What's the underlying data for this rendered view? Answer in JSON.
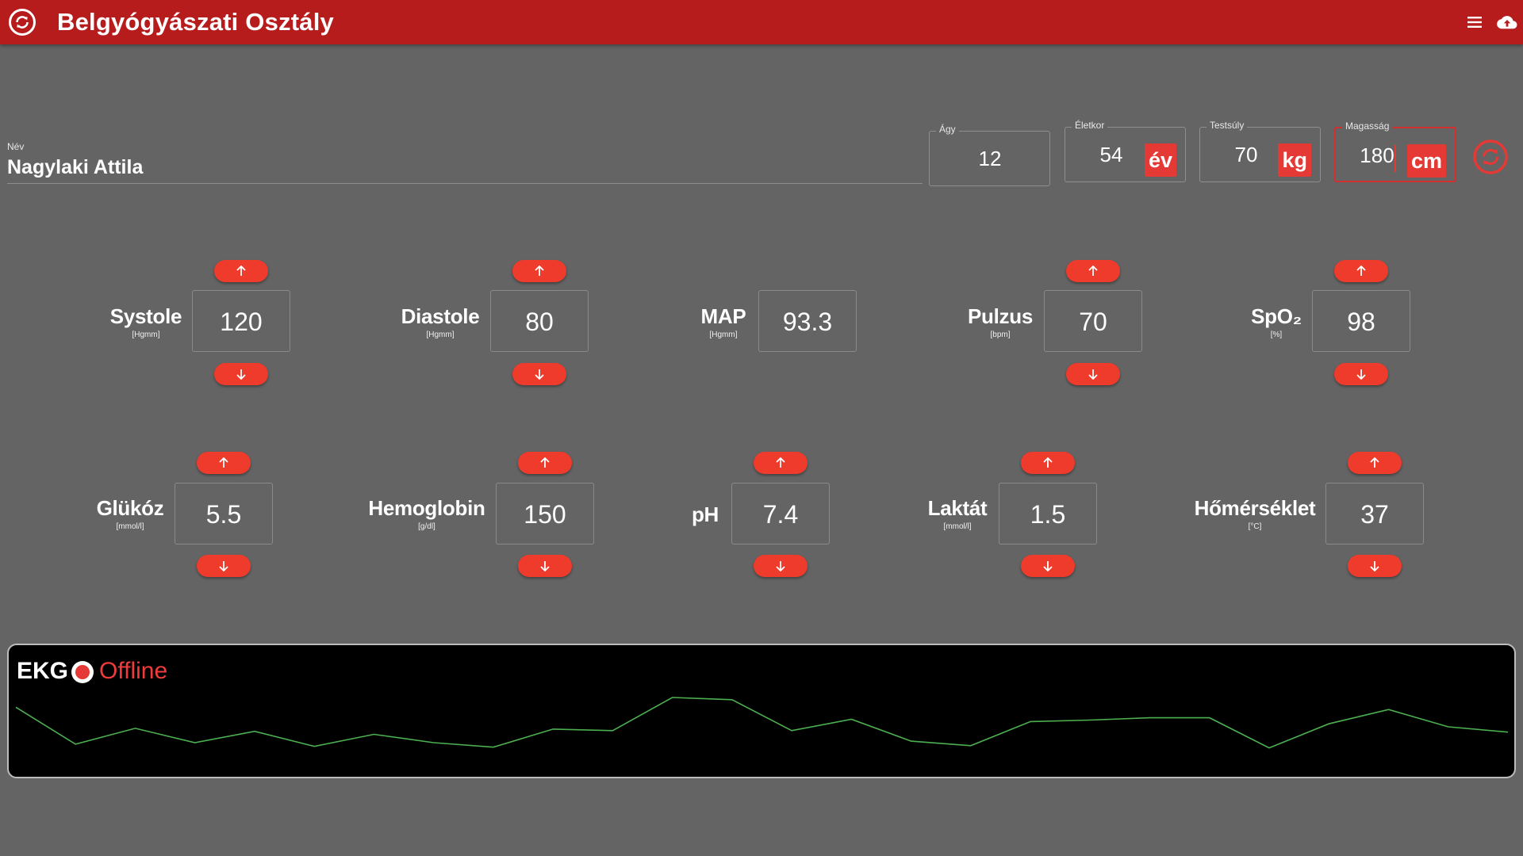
{
  "app": {
    "title": "Belgyógyászati Osztály"
  },
  "patient": {
    "name_label": "Név",
    "name": "Nagylaki Attila",
    "bed": {
      "label": "Ágy",
      "value": "12"
    },
    "age": {
      "label": "Életkor",
      "value": "54",
      "unit": "év"
    },
    "weight": {
      "label": "Testsúly",
      "value": "70",
      "unit": "kg"
    },
    "height": {
      "label": "Magasság",
      "value": "180",
      "unit": "cm"
    }
  },
  "vitals": [
    {
      "name": "Systole",
      "unit": "[Hgmm]",
      "value": "120",
      "adjustable": true
    },
    {
      "name": "Diastole",
      "unit": "[Hgmm]",
      "value": "80",
      "adjustable": true
    },
    {
      "name": "MAP",
      "unit": "[Hgmm]",
      "value": "93.3",
      "adjustable": false
    },
    {
      "name": "Pulzus",
      "unit": "[bpm]",
      "value": "70",
      "adjustable": true
    },
    {
      "name": "SpO₂",
      "unit": "[%]",
      "value": "98",
      "adjustable": true
    }
  ],
  "labs": [
    {
      "name": "Glükóz",
      "unit": "[mmol/l]",
      "value": "5.5",
      "adjustable": true
    },
    {
      "name": "Hemoglobin",
      "unit": "[g/dl]",
      "value": "150",
      "adjustable": true
    },
    {
      "name": "pH",
      "unit": "",
      "value": "7.4",
      "adjustable": true
    },
    {
      "name": "Laktát",
      "unit": "[mmol/l]",
      "value": "1.5",
      "adjustable": true
    },
    {
      "name": "Hőmérséklet",
      "unit": "[°C]",
      "value": "37",
      "adjustable": true
    }
  ],
  "ekg": {
    "title": "EKG",
    "status": "Offline",
    "trace_color": "#4caf50",
    "samples": [
      86,
      37,
      58,
      39,
      54,
      34,
      50,
      39,
      33,
      57,
      55,
      99,
      96,
      55,
      70,
      41,
      35,
      67,
      69,
      72,
      72,
      32,
      64,
      83,
      60,
      53
    ]
  },
  "colors": {
    "appbar": "#b71c1c",
    "accent": "#e53935",
    "background": "#646464"
  },
  "icons": {
    "logo": "sync-circle-icon",
    "menu": "menu-icon",
    "cloud": "cloud-upload-icon",
    "refresh": "sync-circle-icon"
  }
}
